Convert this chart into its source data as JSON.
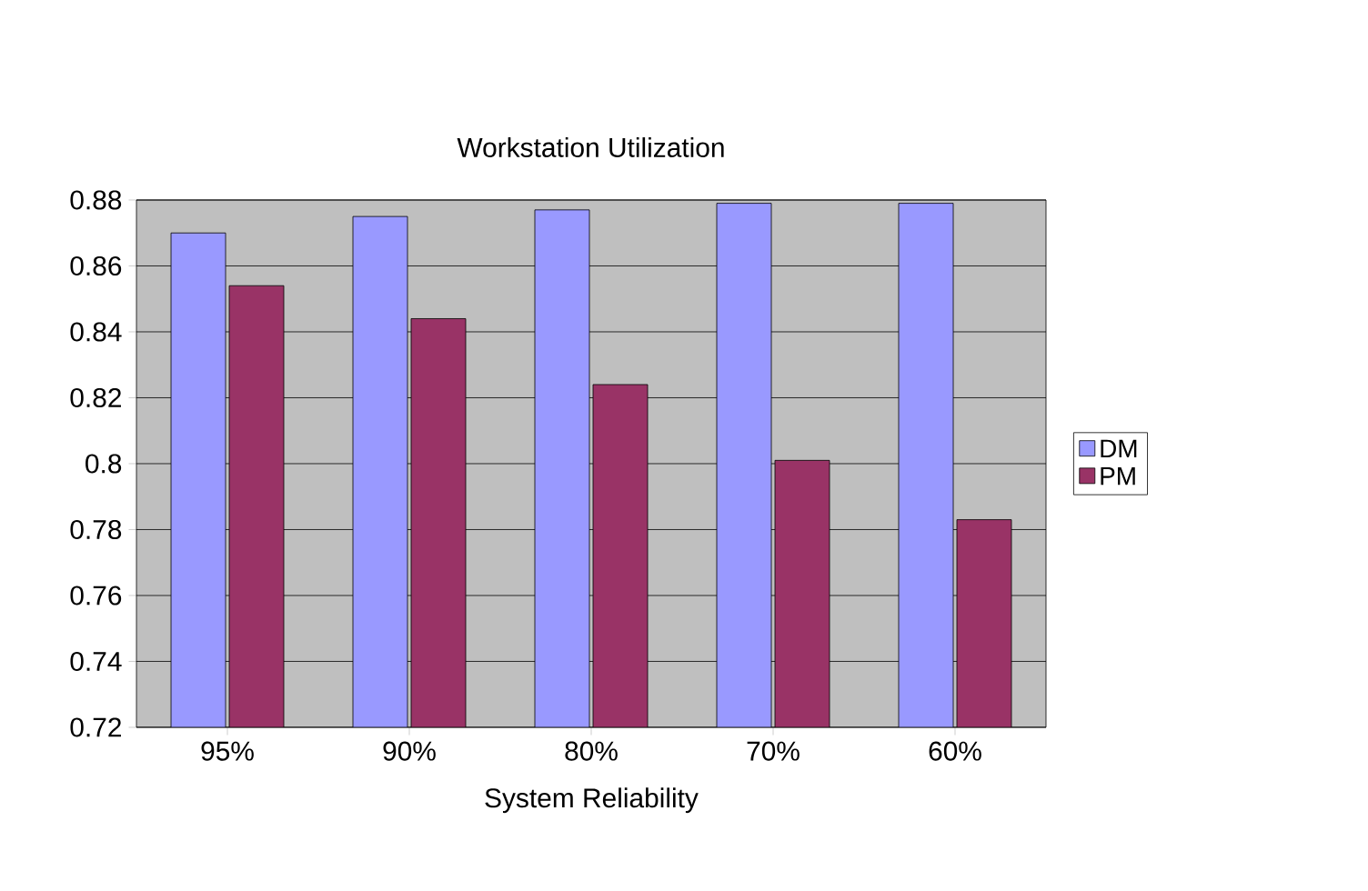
{
  "chart_data": {
    "type": "bar",
    "title": "Workstation Utilization",
    "xlabel": "System Reliability",
    "categories": [
      "95%",
      "90%",
      "80%",
      "70%",
      "60%"
    ],
    "series": [
      {
        "name": "DM",
        "color": "#9999ff",
        "values": [
          0.87,
          0.875,
          0.877,
          0.879,
          0.879
        ]
      },
      {
        "name": "PM",
        "color": "#993366",
        "values": [
          0.854,
          0.844,
          0.824,
          0.801,
          0.783
        ]
      }
    ],
    "ylim": [
      0.72,
      0.88
    ],
    "yticks": [
      0.72,
      0.74,
      0.76,
      0.78,
      0.8,
      0.82,
      0.84,
      0.86,
      0.88
    ],
    "grid": "y",
    "legend": "right"
  }
}
